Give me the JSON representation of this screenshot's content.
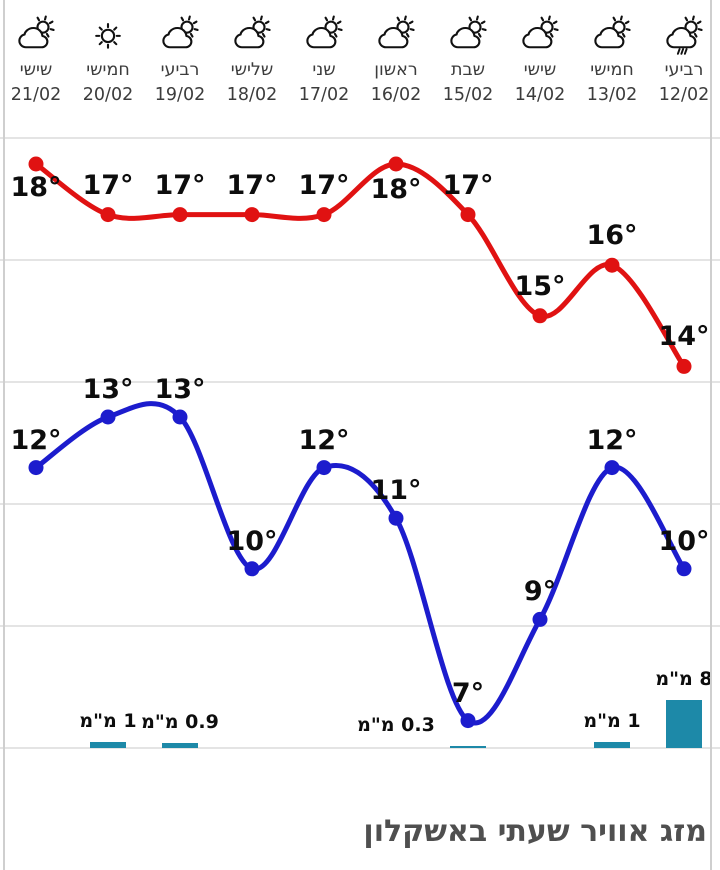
{
  "title": "מזג אוויר שעתי באשקלון",
  "colors": {
    "high_line": "#e01212",
    "low_line": "#1c1ccd",
    "precip_bar": "#1d89a8",
    "grid_line": "#e4e4e4",
    "frame_line": "#cfcfcf",
    "temp_label_text": "#0d0d0d",
    "day_label_text": "#3c3c3c",
    "title_text": "#4f4f4f",
    "icon_stroke": "#111111"
  },
  "days": [
    {
      "name": "רביעי",
      "date": "12/02",
      "icon": "sun-shower-icon"
    },
    {
      "name": "חמישי",
      "date": "13/02",
      "icon": "partly-cloudy-icon"
    },
    {
      "name": "שישי",
      "date": "14/02",
      "icon": "partly-cloudy-icon"
    },
    {
      "name": "שבת",
      "date": "15/02",
      "icon": "partly-cloudy-icon"
    },
    {
      "name": "ראשון",
      "date": "16/02",
      "icon": "partly-cloudy-icon"
    },
    {
      "name": "שני",
      "date": "17/02",
      "icon": "partly-cloudy-icon"
    },
    {
      "name": "שלישי",
      "date": "18/02",
      "icon": "partly-cloudy-icon"
    },
    {
      "name": "רביעי",
      "date": "19/02",
      "icon": "partly-cloudy-icon"
    },
    {
      "name": "חמישי",
      "date": "20/02",
      "icon": "sunny-icon"
    },
    {
      "name": "שישי",
      "date": "21/02",
      "icon": "partly-cloudy-icon"
    }
  ],
  "chart_data": {
    "type": "line",
    "title": "מזג אוויר שעתי באשקלון",
    "x_axis_direction": "rtl",
    "grid": true,
    "categories": [
      "רביעי 12/02",
      "חמישי 13/02",
      "שישי 14/02",
      "שבת 15/02",
      "ראשון 16/02",
      "שני 17/02",
      "שלישי 18/02",
      "רביעי 19/02",
      "חמישי 20/02",
      "שישי 21/02"
    ],
    "series": [
      {
        "name": "high-temperature",
        "color": "#e01212",
        "values": [
          14,
          16,
          15,
          17,
          18,
          17,
          17,
          17,
          17,
          18
        ],
        "labels": [
          "14°",
          "16°",
          "15°",
          "17°",
          "18°",
          "17°",
          "17°",
          "17°",
          "17°",
          "18°"
        ]
      },
      {
        "name": "low-temperature",
        "color": "#1c1ccd",
        "values": [
          10,
          12,
          9,
          7,
          11,
          12,
          10,
          13,
          13,
          12
        ],
        "labels": [
          "10°",
          "12°",
          "9°",
          "7°",
          "11°",
          "12°",
          "10°",
          "13°",
          "13°",
          "12°"
        ]
      }
    ],
    "precipitation": {
      "unit": "מ\"מ",
      "color": "#1d89a8",
      "values": [
        8,
        1,
        0,
        0.3,
        0,
        0,
        0,
        0.9,
        1,
        0
      ],
      "labels": [
        "8 מ\"מ",
        "1 מ\"מ",
        "",
        "0.3 מ\"מ",
        "",
        "",
        "",
        "0.9 מ\"מ",
        "1 מ\"מ",
        ""
      ]
    }
  }
}
